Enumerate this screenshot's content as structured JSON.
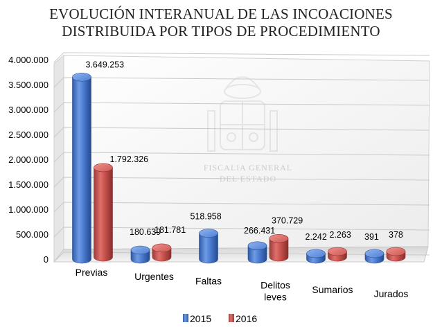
{
  "chart_data": {
    "type": "bar",
    "title": [
      "EVOLUCIÓN INTERANUAL DE LAS INCOACIONES",
      "DISTRIBUIDA POR TIPOS DE PROCEDIMIENTO"
    ],
    "categories": [
      [
        "Previas"
      ],
      [
        "Urgentes"
      ],
      [
        "Faltas"
      ],
      [
        "Delitos",
        "leves"
      ],
      [
        "Sumarios"
      ],
      [
        "Jurados"
      ]
    ],
    "series": [
      {
        "name": "2015",
        "color": "#4472C4",
        "values": [
          3649253,
          180639,
          518958,
          266431,
          2242,
          391
        ],
        "labels": [
          "3.649.253",
          "180.639",
          "518.958",
          "266.431",
          "2.242",
          "391"
        ]
      },
      {
        "name": "2016",
        "color": "#C0504D",
        "values": [
          1792326,
          181781,
          null,
          370729,
          2263,
          378
        ],
        "labels": [
          "1.792.326",
          "181.781",
          "",
          "370.729",
          "2.263",
          "378"
        ]
      }
    ],
    "ylim": [
      0,
      4000000
    ],
    "yticks": [
      0,
      500000,
      1000000,
      1500000,
      2000000,
      2500000,
      3000000,
      3500000,
      4000000
    ],
    "ytick_labels": [
      "0",
      "500.000",
      "1.000.000",
      "1.500.000",
      "2.000.000",
      "2.500.000",
      "3.000.000",
      "3.500.000",
      "4.000.000"
    ],
    "grid": true,
    "legend_position": "bottom",
    "style": "3d-cylinder",
    "watermark": "FISCALIA GENERAL DEL ESTADO"
  }
}
